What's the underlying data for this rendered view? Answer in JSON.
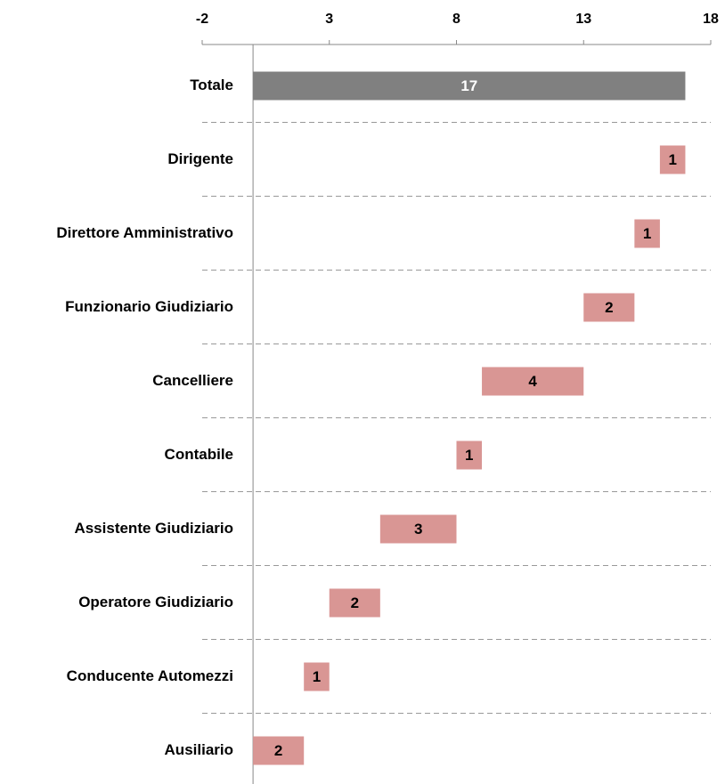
{
  "chart_data": {
    "type": "waterfall",
    "orientation": "horizontal",
    "categories": [
      "Totale",
      "Dirigente",
      "Direttore Amministrativo",
      "Funzionario Giudiziario",
      "Cancelliere",
      "Contabile",
      "Assistente Giudiziario",
      "Operatore Giudiziario",
      "Conducente Automezzi",
      "Ausiliario"
    ],
    "values": [
      17,
      1,
      1,
      2,
      4,
      1,
      3,
      2,
      1,
      2
    ],
    "colors": [
      "#808080",
      "#d99694",
      "#d99694",
      "#d99694",
      "#d99694",
      "#d99694",
      "#d99694",
      "#d99694",
      "#d99694",
      "#d99694"
    ],
    "label_colors": [
      "#ffffff",
      "#000000",
      "#000000",
      "#000000",
      "#000000",
      "#000000",
      "#000000",
      "#000000",
      "#000000",
      "#000000"
    ],
    "xlim": [
      -2,
      18
    ],
    "xticks": [
      -2,
      3,
      8,
      13,
      18
    ],
    "grid": true
  }
}
